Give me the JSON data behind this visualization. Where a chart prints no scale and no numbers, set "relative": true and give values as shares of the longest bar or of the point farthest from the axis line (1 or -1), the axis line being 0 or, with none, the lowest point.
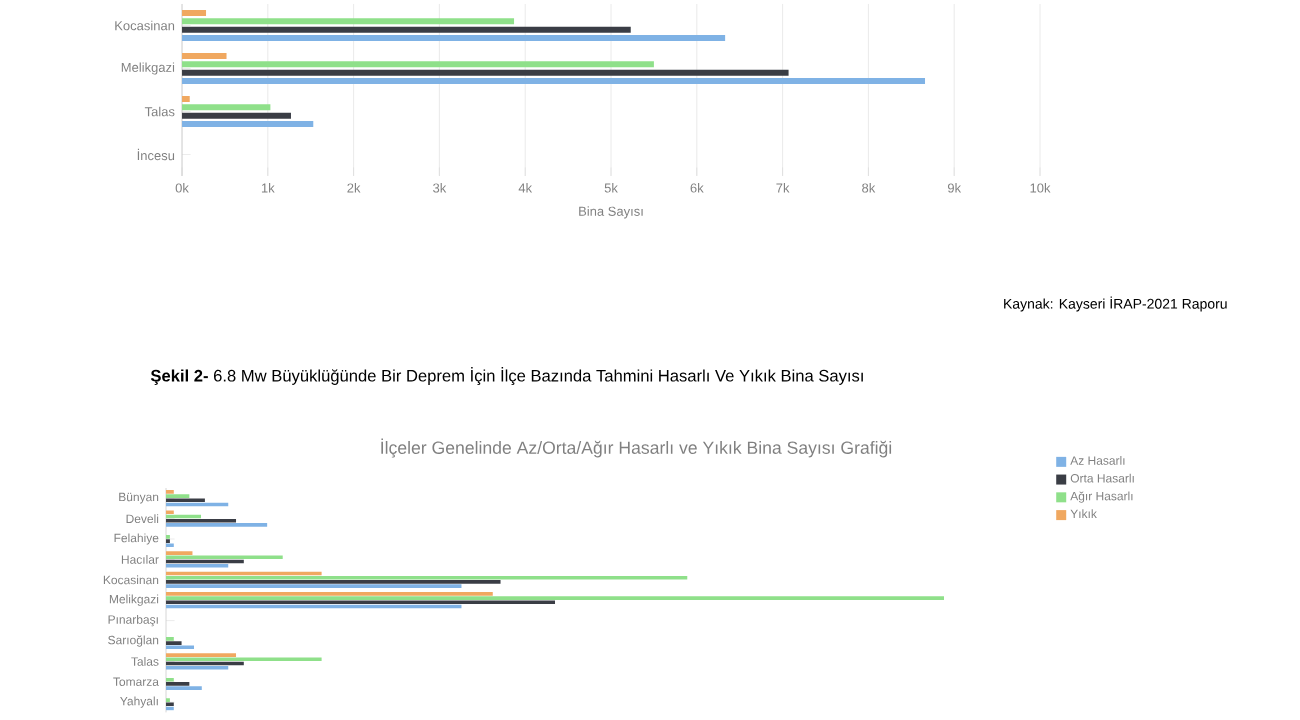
{
  "chart_data": [
    {
      "type": "bar",
      "orientation": "horizontal",
      "categories": [
        "Kocasinan",
        "Melikgazi",
        "Talas",
        "İncesu"
      ],
      "series": [
        {
          "color": "#7fb2e5",
          "values": [
            6330,
            8660,
            1530,
            0
          ]
        },
        {
          "color": "#3a3d45",
          "values": [
            5230,
            7070,
            1270,
            0
          ]
        },
        {
          "color": "#8fe08a",
          "values": [
            3870,
            5500,
            1030,
            0
          ]
        },
        {
          "color": "#f0a860",
          "values": [
            280,
            520,
            90,
            0
          ]
        }
      ],
      "xlim": [
        0,
        10000
      ],
      "xticks": [
        {
          "value": 0,
          "label": "0k"
        },
        {
          "value": 1000,
          "label": "1k"
        },
        {
          "value": 2000,
          "label": "2k"
        },
        {
          "value": 3000,
          "label": "3k"
        },
        {
          "value": 4000,
          "label": "4k"
        },
        {
          "value": 5000,
          "label": "5k"
        },
        {
          "value": 6000,
          "label": "6k"
        },
        {
          "value": 7000,
          "label": "7k"
        },
        {
          "value": 8000,
          "label": "8k"
        },
        {
          "value": 9000,
          "label": "9k"
        },
        {
          "value": 10000,
          "label": "10k"
        }
      ],
      "xlabel": "Bina Sayısı",
      "grid": "x",
      "annotations": [
        "Kaynak: Kayseri İRAP-2021 Raporu"
      ]
    },
    {
      "type": "bar",
      "orientation": "horizontal",
      "relative": true,
      "tick_labels": "y",
      "title": "**Şekil 2-** 6.8 Mw Büyüklüğünde  Bir Deprem İçin İlçe Bazında Tahmini Hasarlı Ve Yıkık Bina Sayısı",
      "subtitle": "İlçeler Genelinde Az/Orta/Ağır Hasarlı ve Yıkık Bina Sayısı Grafiği",
      "categories": [
        "Bünyan",
        "Develi",
        "Felahiye",
        "Hacılar",
        "Kocasinan",
        "Melikgazi",
        "Pınarbaşı",
        "Sarıoğlan",
        "Talas",
        "Tomarza",
        "Yahyalı"
      ],
      "series": [
        {
          "name": "Az Hasarlı",
          "color": "#7fb2e5",
          "values": [
            0.08,
            0.13,
            0.01,
            0.08,
            0.38,
            0.38,
            0,
            0.036,
            0.08,
            0.046,
            0.01
          ]
        },
        {
          "name": "Orta Hasarlı",
          "color": "#3a3d45",
          "values": [
            0.05,
            0.09,
            0.005,
            0.1,
            0.43,
            0.5,
            0,
            0.02,
            0.1,
            0.03,
            0.01
          ]
        },
        {
          "name": "Ağır Hasarlı",
          "color": "#8fe08a",
          "values": [
            0.03,
            0.045,
            0.005,
            0.15,
            0.67,
            1,
            0,
            0.01,
            0.2,
            0.01,
            0.005
          ]
        },
        {
          "name": "Yıkık",
          "color": "#f0a860",
          "values": [
            0.01,
            0.01,
            0,
            0.034,
            0.2,
            0.42,
            0,
            0,
            0.09,
            0,
            0
          ]
        }
      ],
      "legend": "top right"
    }
  ]
}
